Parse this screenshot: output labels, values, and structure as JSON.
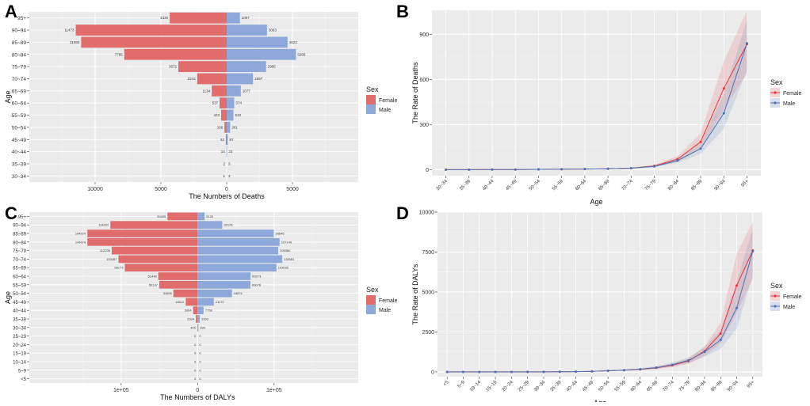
{
  "panels": {
    "A": {
      "letter": "A"
    },
    "B": {
      "letter": "B"
    },
    "C": {
      "letter": "C"
    },
    "D": {
      "letter": "D"
    }
  },
  "legend": {
    "title": "Sex",
    "female": "Female",
    "male": "Male"
  },
  "colors": {
    "female_bar": "#e06c6c",
    "male_bar": "#8ea9d9",
    "female_line": "#e8343a",
    "male_line": "#4a73b5",
    "panel_bg": "#ebebeb"
  },
  "chart_data": [
    {
      "id": "A",
      "type": "bar",
      "orientation": "horizontal-pyramid",
      "title": "",
      "xlabel": "The Numbers of Deaths",
      "ylabel": "Age",
      "xlim": [
        -15000,
        10000
      ],
      "xticks": [
        -10000,
        -5000,
        0,
        5000
      ],
      "xtick_labels": [
        "10000",
        "5000",
        "0",
        "5000"
      ],
      "categories": [
        "95+",
        "90~94",
        "85~89",
        "80~84",
        "75~79",
        "70~74",
        "65~69",
        "60~64",
        "55~59",
        "50~54",
        "45~49",
        "40~44",
        "35~39",
        "30~34"
      ],
      "series": [
        {
          "name": "Female",
          "values": [
            4330,
            11473,
            11060,
            7785,
            3672,
            2242,
            1134,
            537,
            423,
            166,
            63,
            14,
            2,
            1
          ]
        },
        {
          "name": "Male",
          "values": [
            1007,
            3063,
            4624,
            5265,
            2995,
            1997,
            1077,
            574,
            510,
            261,
            87,
            23,
            3,
            3
          ]
        }
      ]
    },
    {
      "id": "B",
      "type": "line",
      "title": "",
      "xlabel": "Age",
      "ylabel": "The Rate of Deaths",
      "ylim": [
        -40,
        1060
      ],
      "yticks": [
        0,
        300,
        600,
        900
      ],
      "categories": [
        "30~34",
        "35~39",
        "40~44",
        "45~49",
        "50~54",
        "55~59",
        "60~64",
        "65~69",
        "70~74",
        "75~79",
        "80~84",
        "85~89",
        "90~94",
        "95+"
      ],
      "series": [
        {
          "name": "Female",
          "values": [
            0.1,
            0.2,
            0.5,
            1,
            2,
            3,
            4,
            6,
            10,
            25,
            70,
            185,
            540,
            835
          ],
          "upper": [
            0.2,
            0.4,
            0.8,
            1.5,
            3,
            4,
            6,
            9,
            14,
            32,
            90,
            240,
            720,
            1060
          ],
          "lower": [
            0,
            0.1,
            0.3,
            0.6,
            1.2,
            2,
            3,
            4,
            7,
            18,
            52,
            140,
            400,
            640
          ]
        },
        {
          "name": "Male",
          "values": [
            0.1,
            0.2,
            0.5,
            1,
            2,
            3,
            4,
            6,
            10,
            22,
            60,
            140,
            375,
            840
          ],
          "upper": [
            0.2,
            0.4,
            0.8,
            1.5,
            3,
            4,
            6,
            9,
            14,
            28,
            78,
            180,
            500,
            1000
          ],
          "lower": [
            0,
            0.1,
            0.3,
            0.6,
            1.2,
            2,
            3,
            4,
            7,
            16,
            45,
            105,
            270,
            660
          ]
        }
      ]
    },
    {
      "id": "C",
      "type": "bar",
      "orientation": "horizontal-pyramid",
      "title": "",
      "xlabel": "The Numbers of DALYs",
      "ylabel": "Age",
      "xlim": [
        -220000,
        210000
      ],
      "xticks": [
        -100000,
        0,
        100000
      ],
      "xtick_labels": [
        "1e+05",
        "0",
        "1e+05"
      ],
      "categories": [
        "95+",
        "90~94",
        "85~89",
        "80~84",
        "75~79",
        "70~74",
        "65~69",
        "60~64",
        "55~59",
        "50~54",
        "45~49",
        "40~44",
        "35~39",
        "30~34",
        "25~29",
        "20~24",
        "15~19",
        "10~14",
        "5~9",
        "<5"
      ],
      "series": [
        {
          "name": "Female",
          "values": [
            39405,
            114022,
            144074,
            144079,
            112296,
            103457,
            95173,
            51448,
            50137,
            31698,
            15512,
            5904,
            2324,
            445,
            0,
            0,
            0,
            0,
            0,
            0
          ]
        },
        {
          "name": "Male",
          "values": [
            9126,
            32176,
            99646,
            107140,
            105380,
            110681,
            103032,
            69273,
            69076,
            44876,
            21172,
            7758,
            2903,
            990,
            0,
            0,
            0,
            0,
            0,
            0
          ]
        }
      ]
    },
    {
      "id": "D",
      "type": "line",
      "title": "",
      "xlabel": "Age",
      "ylabel": "The Rate of DALYs",
      "ylim": [
        -300,
        10000
      ],
      "yticks": [
        0,
        2500,
        5000,
        7500,
        10000
      ],
      "categories": [
        "<5",
        "5~9",
        "10~14",
        "15~19",
        "20~24",
        "25~29",
        "30~34",
        "35~39",
        "40~44",
        "45~49",
        "50~54",
        "55~59",
        "60~64",
        "65~69",
        "70~74",
        "75~79",
        "80~84",
        "85~89",
        "90~94",
        "95+"
      ],
      "series": [
        {
          "name": "Female",
          "values": [
            0,
            0,
            0,
            0,
            0,
            1,
            3,
            8,
            18,
            35,
            70,
            110,
            160,
            250,
            420,
            680,
            1300,
            2400,
            5400,
            7600
          ],
          "upper": [
            0,
            0,
            0,
            0,
            0,
            2,
            5,
            12,
            25,
            48,
            95,
            150,
            220,
            330,
            540,
            850,
            1600,
            3100,
            7400,
            9400
          ],
          "lower": [
            0,
            0,
            0,
            0,
            0,
            0,
            2,
            5,
            12,
            25,
            50,
            80,
            115,
            180,
            310,
            510,
            1000,
            1800,
            3700,
            5800
          ]
        },
        {
          "name": "Male",
          "values": [
            0,
            0,
            0,
            0,
            0,
            1,
            3,
            8,
            18,
            35,
            70,
            110,
            170,
            270,
            450,
            720,
            1250,
            2000,
            4000,
            7550
          ],
          "upper": [
            0,
            0,
            0,
            0,
            0,
            2,
            5,
            12,
            25,
            48,
            95,
            150,
            240,
            360,
            580,
            900,
            1550,
            2600,
            5600,
            9000
          ],
          "lower": [
            0,
            0,
            0,
            0,
            0,
            0,
            2,
            5,
            12,
            25,
            50,
            80,
            120,
            190,
            330,
            540,
            950,
            1450,
            2700,
            6000
          ]
        }
      ]
    }
  ]
}
